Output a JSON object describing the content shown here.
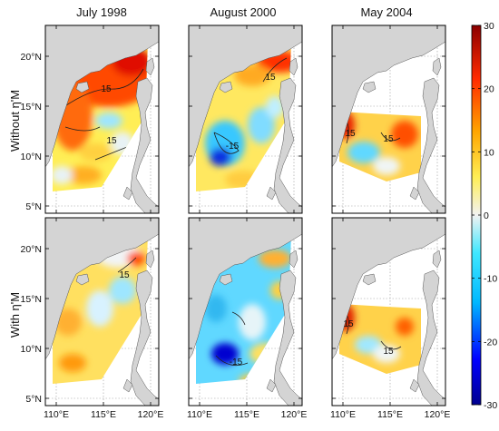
{
  "columns": [
    "July 1998",
    "August 2000",
    "May 2004"
  ],
  "rows": [
    "Without η'M",
    "With η'M"
  ],
  "lat_ticks": [
    "5°N",
    "10°N",
    "15°N",
    "20°N"
  ],
  "lon_ticks": [
    "110°E",
    "115°E",
    "120°E"
  ],
  "colorbar": {
    "min": -30,
    "max": 30,
    "ticks": [
      "30",
      "20",
      "10",
      "0",
      "-10",
      "-20",
      "-30"
    ]
  },
  "contour_labels": [
    "15",
    "-15"
  ],
  "colors": {
    "land": "#d4d4d4",
    "grid": "#9a9a9a",
    "frame": "#000000"
  }
}
